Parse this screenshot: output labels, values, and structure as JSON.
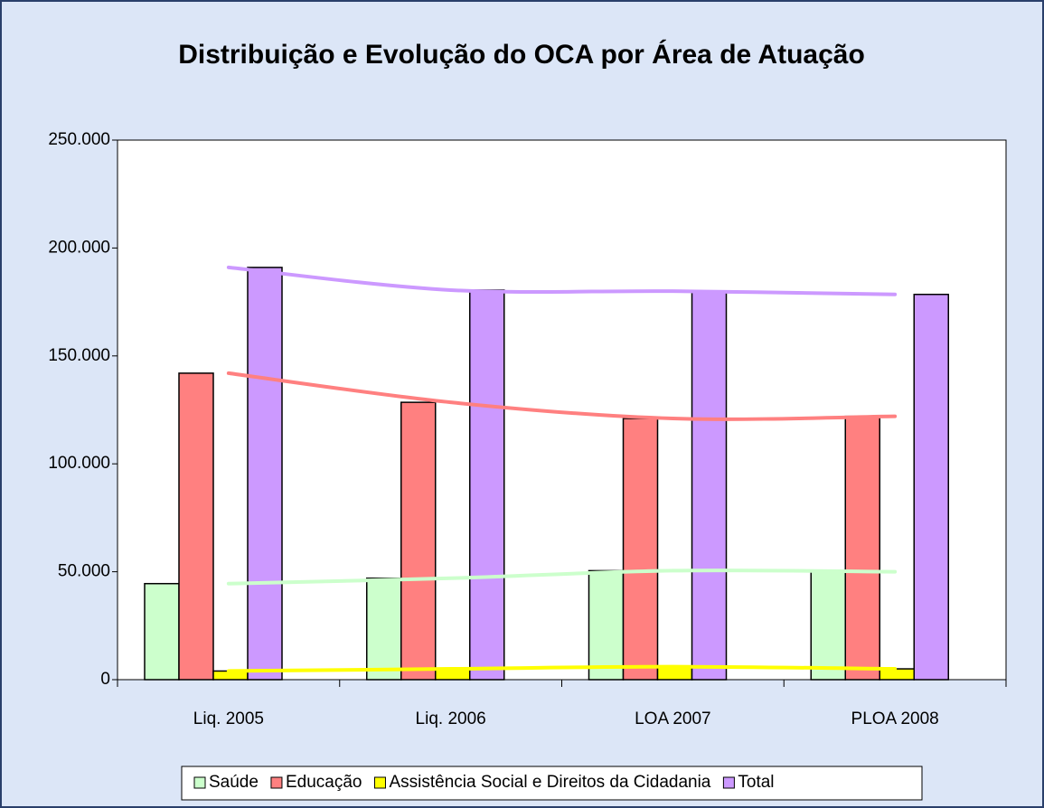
{
  "chart_data": {
    "type": "bar",
    "title": "Distribuição e Evolução do OCA por Área de Atuação",
    "categories": [
      "Liq. 2005",
      "Liq. 2006",
      "LOA 2007",
      "PLOA 2008"
    ],
    "series": [
      {
        "name": "Saúde",
        "color": "#ccffcc",
        "values": [
          44500,
          47000,
          50500,
          50000
        ]
      },
      {
        "name": "Educação",
        "color": "#ff8080",
        "values": [
          142000,
          128500,
          121000,
          122000
        ]
      },
      {
        "name": "Assistência Social e Direitos da Cidadania",
        "color": "#ffff00",
        "values": [
          4000,
          5000,
          6000,
          5000
        ]
      },
      {
        "name": "Total",
        "color": "#cc99ff",
        "values": [
          191000,
          180500,
          180000,
          178500
        ]
      }
    ],
    "ylim": [
      0,
      250000
    ],
    "yticks": [
      0,
      {
        "value": 50000,
        "label": "50.000"
      },
      {
        "value": 100000,
        "label": "100.000"
      },
      {
        "value": 150000,
        "label": "150.000"
      },
      {
        "value": 200000,
        "label": "200.000"
      },
      {
        "value": 250000,
        "label": "250.000"
      }
    ],
    "legend": "bottom"
  }
}
